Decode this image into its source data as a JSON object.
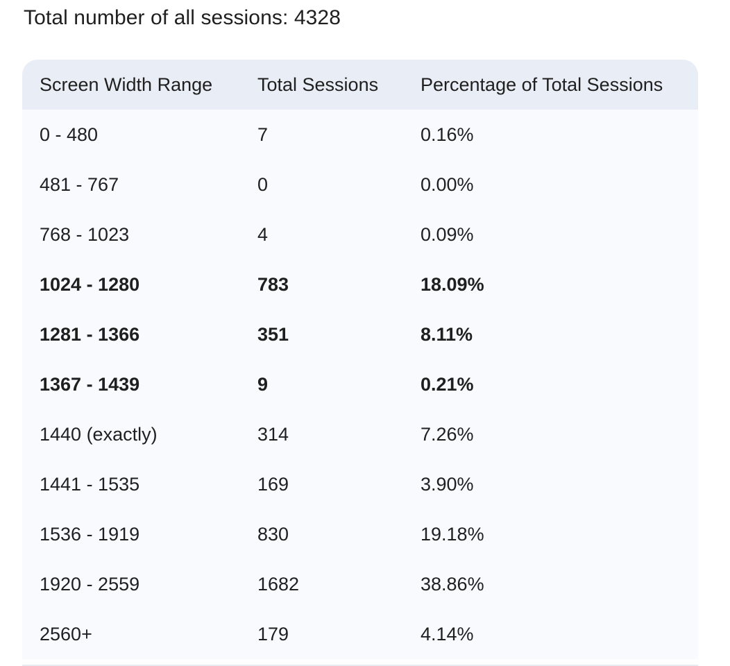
{
  "heading": "Total number of all sessions: 4328",
  "table": {
    "headers": [
      "Screen Width Range",
      "Total Sessions",
      "Percentage of Total Sessions"
    ],
    "rows": [
      {
        "range": "0 - 480",
        "sessions": "7",
        "percentage": "0.16%",
        "bold": false
      },
      {
        "range": "481 - 767",
        "sessions": "0",
        "percentage": "0.00%",
        "bold": false
      },
      {
        "range": "768 - 1023",
        "sessions": "4",
        "percentage": "0.09%",
        "bold": false
      },
      {
        "range": "1024 - 1280",
        "sessions": "783",
        "percentage": "18.09%",
        "bold": true
      },
      {
        "range": "1281 - 1366",
        "sessions": "351",
        "percentage": "8.11%",
        "bold": true
      },
      {
        "range": "1367 - 1439",
        "sessions": "9",
        "percentage": "0.21%",
        "bold": true
      },
      {
        "range": "1440 (exactly)",
        "sessions": "314",
        "percentage": "7.26%",
        "bold": false
      },
      {
        "range": "1441 - 1535",
        "sessions": "169",
        "percentage": "3.90%",
        "bold": false
      },
      {
        "range": "1536 - 1919",
        "sessions": "830",
        "percentage": "19.18%",
        "bold": false
      },
      {
        "range": "1920 - 2559",
        "sessions": "1682",
        "percentage": "38.86%",
        "bold": false
      },
      {
        "range": "2560+",
        "sessions": "179",
        "percentage": "4.14%",
        "bold": false
      }
    ]
  }
}
